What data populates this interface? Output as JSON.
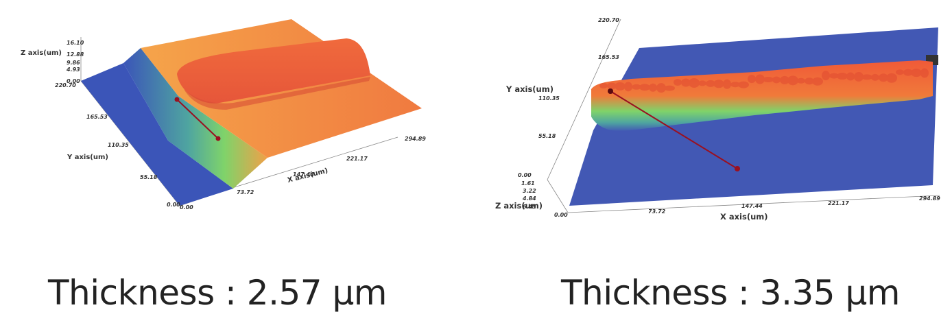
{
  "chart_data": [
    {
      "type": "surface3d",
      "xlabel": "X axis(um)",
      "ylabel": "Y axis(um)",
      "zlabel": "Z axis(um)",
      "x_ticks": [
        "0.00",
        "73.72",
        "147.44",
        "221.17",
        "294.89"
      ],
      "y_ticks": [
        "0.00",
        "55.18",
        "110.35",
        "165.53",
        "220.70"
      ],
      "z_ticks": [
        "0.00",
        "4.93",
        "9.86",
        "12.88",
        "16.10"
      ],
      "thickness": "Thickness : 2.57 μm",
      "colors": {
        "low": "#3b55b8",
        "mid": "#6fd070",
        "high": "#f07a40",
        "peak": "#e8503a",
        "marker": "#9a1020"
      }
    },
    {
      "type": "surface3d",
      "xlabel": "X axis(um)",
      "ylabel": "Y axis(um)",
      "zlabel": "Z axis(um)",
      "x_ticks": [
        "0.00",
        "73.72",
        "147.44",
        "221.17",
        "294.89"
      ],
      "y_ticks": [
        "0.00",
        "55.18",
        "110.35",
        "165.53",
        "220.70"
      ],
      "z_ticks": [
        "0.00",
        "1.61",
        "3.22",
        "4.84",
        "6.45"
      ],
      "thickness": "Thickness : 3.35 μm",
      "colors": {
        "low": "#4258b4",
        "mid": "#7fd36a",
        "high": "#f0603a",
        "peak": "#e84a30",
        "marker": "#9a1020"
      }
    }
  ]
}
